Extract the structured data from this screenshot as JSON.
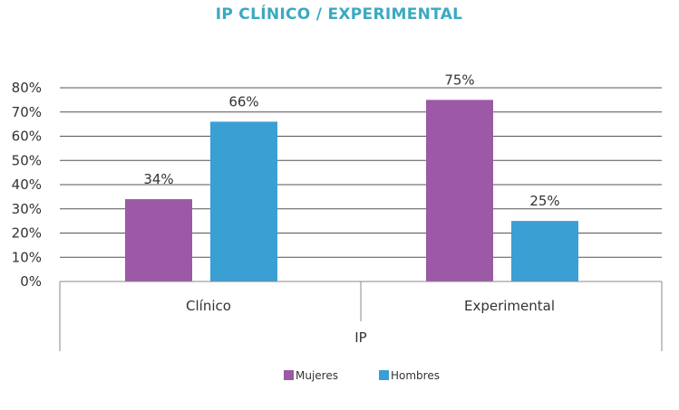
{
  "chart_data": {
    "type": "bar",
    "title": "IP CLÍNICO / EXPERIMENTAL",
    "xlabel": "IP",
    "ylabel": "",
    "categories": [
      "Clínico",
      "Experimental"
    ],
    "series": [
      {
        "name": "Mujeres",
        "values": [
          34,
          75
        ],
        "labels": [
          "34%",
          "75%"
        ]
      },
      {
        "name": "Hombres",
        "values": [
          66,
          25
        ],
        "labels": [
          "66%",
          "25%"
        ]
      }
    ],
    "ylim": [
      0,
      80
    ],
    "yticks": [
      0,
      10,
      20,
      30,
      40,
      50,
      60,
      70,
      80
    ],
    "ytick_labels": [
      "0%",
      "10%",
      "20%",
      "30%",
      "40%",
      "50%",
      "60%",
      "70%",
      "80%"
    ],
    "grid": true,
    "legend_position": "bottom-center"
  },
  "colors": {
    "title": "#3aa9c0",
    "mujeres": "#9b59a6",
    "hombres": "#3a9fd3",
    "grid": "#555555",
    "axis": "#888888"
  }
}
